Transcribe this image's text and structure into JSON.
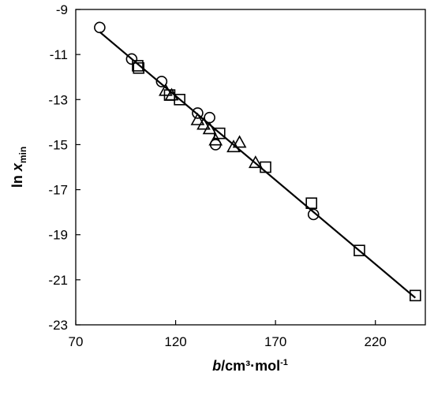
{
  "chart_data": {
    "type": "scatter",
    "xlabel": {
      "var": "b",
      "unit": "/cm³·mol",
      "sup": "-1"
    },
    "ylabel": {
      "main": "ln ",
      "var": "x",
      "sub": "min"
    },
    "xlim": [
      70,
      245
    ],
    "ylim": [
      -23,
      -9
    ],
    "xticks": [
      "70",
      "120",
      "170",
      "220"
    ],
    "yticks": [
      "-9",
      "-11",
      "-13",
      "-15",
      "-17",
      "-19",
      "-21",
      "-23"
    ],
    "grid": false,
    "series": [
      {
        "marker": "circle",
        "points": [
          [
            82,
            -9.8
          ],
          [
            98,
            -11.2
          ],
          [
            113,
            -12.2
          ],
          [
            131,
            -13.6
          ],
          [
            137,
            -13.8
          ],
          [
            140,
            -15.0
          ],
          [
            189,
            -18.1
          ]
        ]
      },
      {
        "marker": "square",
        "points": [
          [
            101,
            -11.5
          ],
          [
            101.5,
            -11.6
          ],
          [
            117,
            -12.8
          ],
          [
            122,
            -13.0
          ],
          [
            142,
            -14.5
          ],
          [
            165,
            -16.0
          ],
          [
            188,
            -17.6
          ],
          [
            212,
            -19.7
          ],
          [
            240,
            -21.7
          ]
        ]
      },
      {
        "marker": "triangle",
        "points": [
          [
            115,
            -12.6
          ],
          [
            118,
            -12.8
          ],
          [
            131,
            -13.9
          ],
          [
            134,
            -14.1
          ],
          [
            137,
            -14.3
          ],
          [
            140,
            -14.8
          ],
          [
            149,
            -15.1
          ],
          [
            152,
            -14.9
          ],
          [
            160,
            -15.8
          ]
        ]
      }
    ],
    "fit_line": {
      "x": [
        82,
        240
      ],
      "y": [
        -10.0,
        -21.8
      ]
    }
  }
}
